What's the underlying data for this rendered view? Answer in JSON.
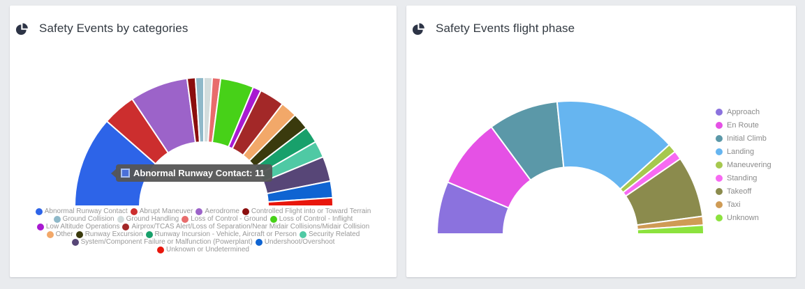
{
  "theme": {
    "page_background": "#e9ebee",
    "card_background": "#ffffff",
    "title_color": "#333a42",
    "icon_color": "#2d3446",
    "legend_text_color": "#999999",
    "tooltip_background": "#555555",
    "segment_gap_color": "#ffffff"
  },
  "chart_data": [
    {
      "type": "pie",
      "variant": "half-donut",
      "title": "Safety Events by categories",
      "legend_position": "bottom",
      "categories": [
        "Abnormal Runway Contact",
        "Abrupt Maneuver",
        "Aerodrome",
        "Controlled Flight into or Toward Terrain",
        "Ground Collision",
        "Ground Handling",
        "Loss of Control - Ground",
        "Loss of Control - Inflight",
        "Low Altitude Operations",
        "Airprox/TCAS Alert/Loss of Separation/Near Midair Collisions/Midair Collision",
        "Other",
        "Runway Excursion",
        "Runway Incursion - Vehicle, Aircraft or Person",
        "Security Related",
        "System/Component Failure or Malfunction (Powerplant)",
        "Undershoot/Overshoot",
        "Unknown or Undetermined"
      ],
      "values": [
        11,
        4,
        7,
        1,
        1,
        1,
        1,
        4,
        1,
        3,
        2,
        2,
        2,
        2,
        3,
        2,
        1
      ],
      "colors": [
        "#2d64e8",
        "#cc2e2e",
        "#9c63c9",
        "#8b0e0e",
        "#8fb9c9",
        "#d3dddd",
        "#e86c6c",
        "#47d118",
        "#a81ad1",
        "#a32828",
        "#f2a869",
        "#3a3a0d",
        "#18a06b",
        "#4fc9a4",
        "#574677",
        "#0f64d2",
        "#e8160c"
      ]
    },
    {
      "type": "pie",
      "variant": "half-donut",
      "title": "Safety Events flight phase",
      "legend_position": "right",
      "categories": [
        "Approach",
        "En Route",
        "Initial Climb",
        "Landing",
        "Maneuvering",
        "Standing",
        "Takeoff",
        "Taxi",
        "Unknown"
      ],
      "values": [
        6,
        8,
        8,
        14,
        1,
        1,
        7,
        1,
        1
      ],
      "colors": [
        "#8b72de",
        "#e551e5",
        "#5b98a8",
        "#66b5f0",
        "#a6c84e",
        "#f76af2",
        "#8b8b4d",
        "#cf9b55",
        "#8ce23e"
      ]
    }
  ],
  "tooltip": {
    "chart": 0,
    "text": "Abnormal Runway Contact: 11",
    "swatch_fill": "#4a6fd8",
    "swatch_border": "#a9c0f0"
  }
}
